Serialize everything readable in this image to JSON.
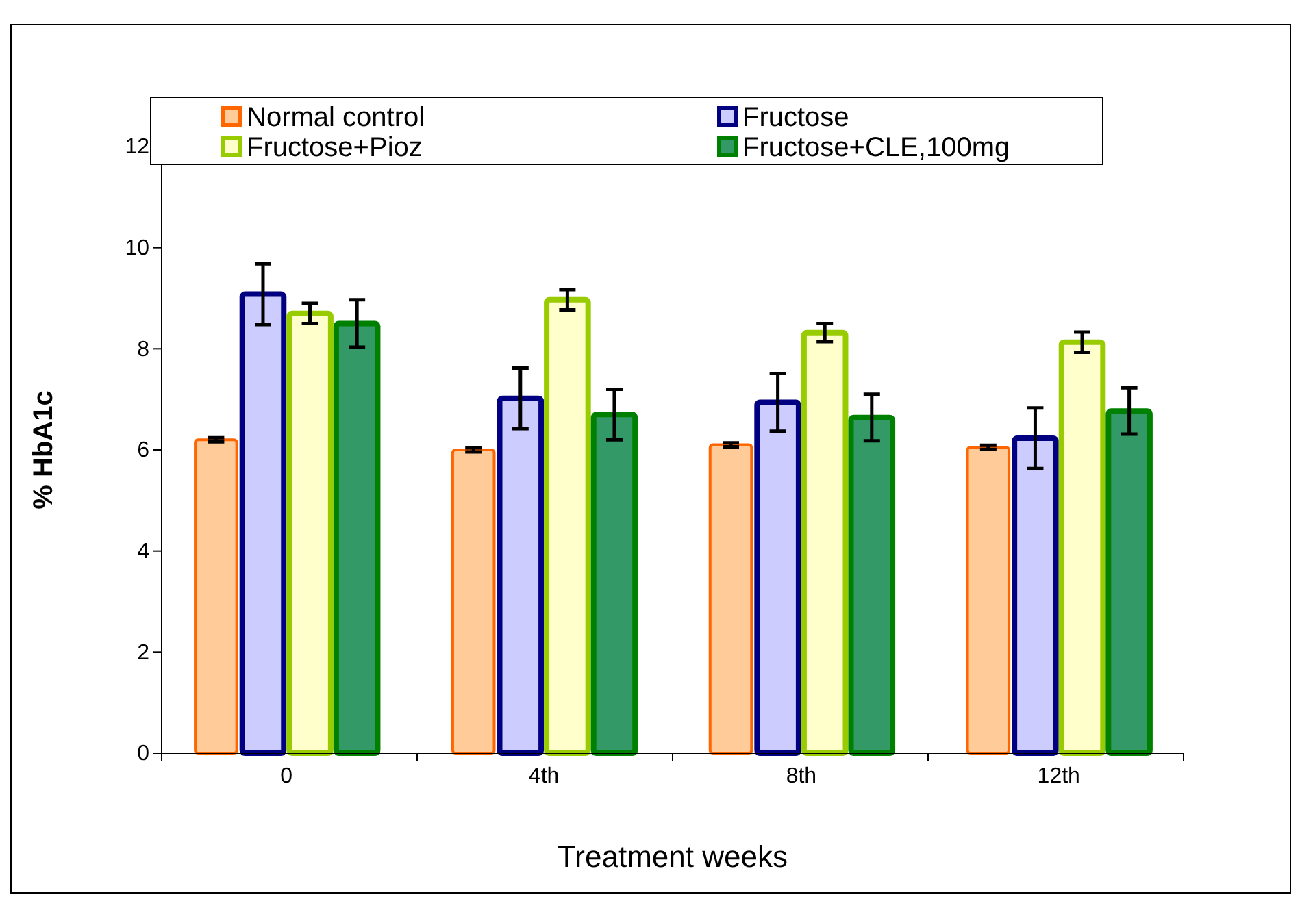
{
  "chart_data": {
    "type": "bar",
    "xlabel": "Treatment weeks",
    "ylabel": "% HbA1c",
    "categories": [
      "0",
      "4th",
      "8th",
      "12th"
    ],
    "ylim": [
      0,
      12
    ],
    "yticks": [
      0,
      2,
      4,
      6,
      8,
      10,
      12
    ],
    "grid": false,
    "legend": "top",
    "series": [
      {
        "name": "Normal control",
        "color": "#ffcc99",
        "values": [
          6.2,
          6.0,
          6.1,
          6.05
        ],
        "errors": [
          0.04,
          0.04,
          0.04,
          0.04
        ]
      },
      {
        "name": "Fructose",
        "color": "#ccccff",
        "values": [
          9.08,
          7.02,
          6.94,
          6.23
        ],
        "errors": [
          0.6,
          0.6,
          0.57,
          0.6
        ]
      },
      {
        "name": "Fructose+Pioz",
        "color": "#ffffcc",
        "values": [
          8.7,
          8.97,
          8.32,
          8.13
        ],
        "errors": [
          0.2,
          0.2,
          0.18,
          0.2
        ]
      },
      {
        "name": "Fructose+CLE,100mg",
        "color": "#339966",
        "values": [
          8.5,
          6.7,
          6.64,
          6.77
        ],
        "errors": [
          0.47,
          0.5,
          0.46,
          0.46
        ]
      }
    ]
  }
}
